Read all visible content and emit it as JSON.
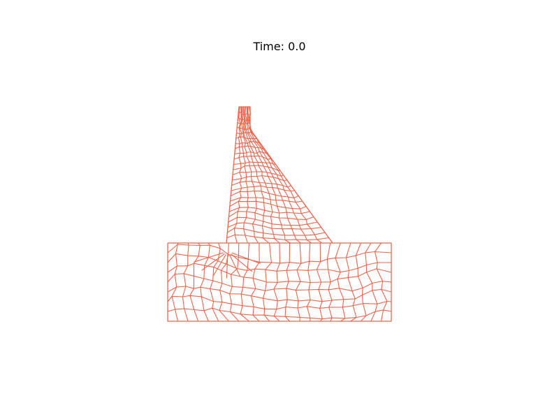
{
  "figure": {
    "title": "Time: 0.0",
    "mesh_color": "#f0644b",
    "background": "#ffffff",
    "description_type": "finite-element quadrilateral mesh of a dam on a rectangular foundation",
    "axes_visible": false
  }
}
